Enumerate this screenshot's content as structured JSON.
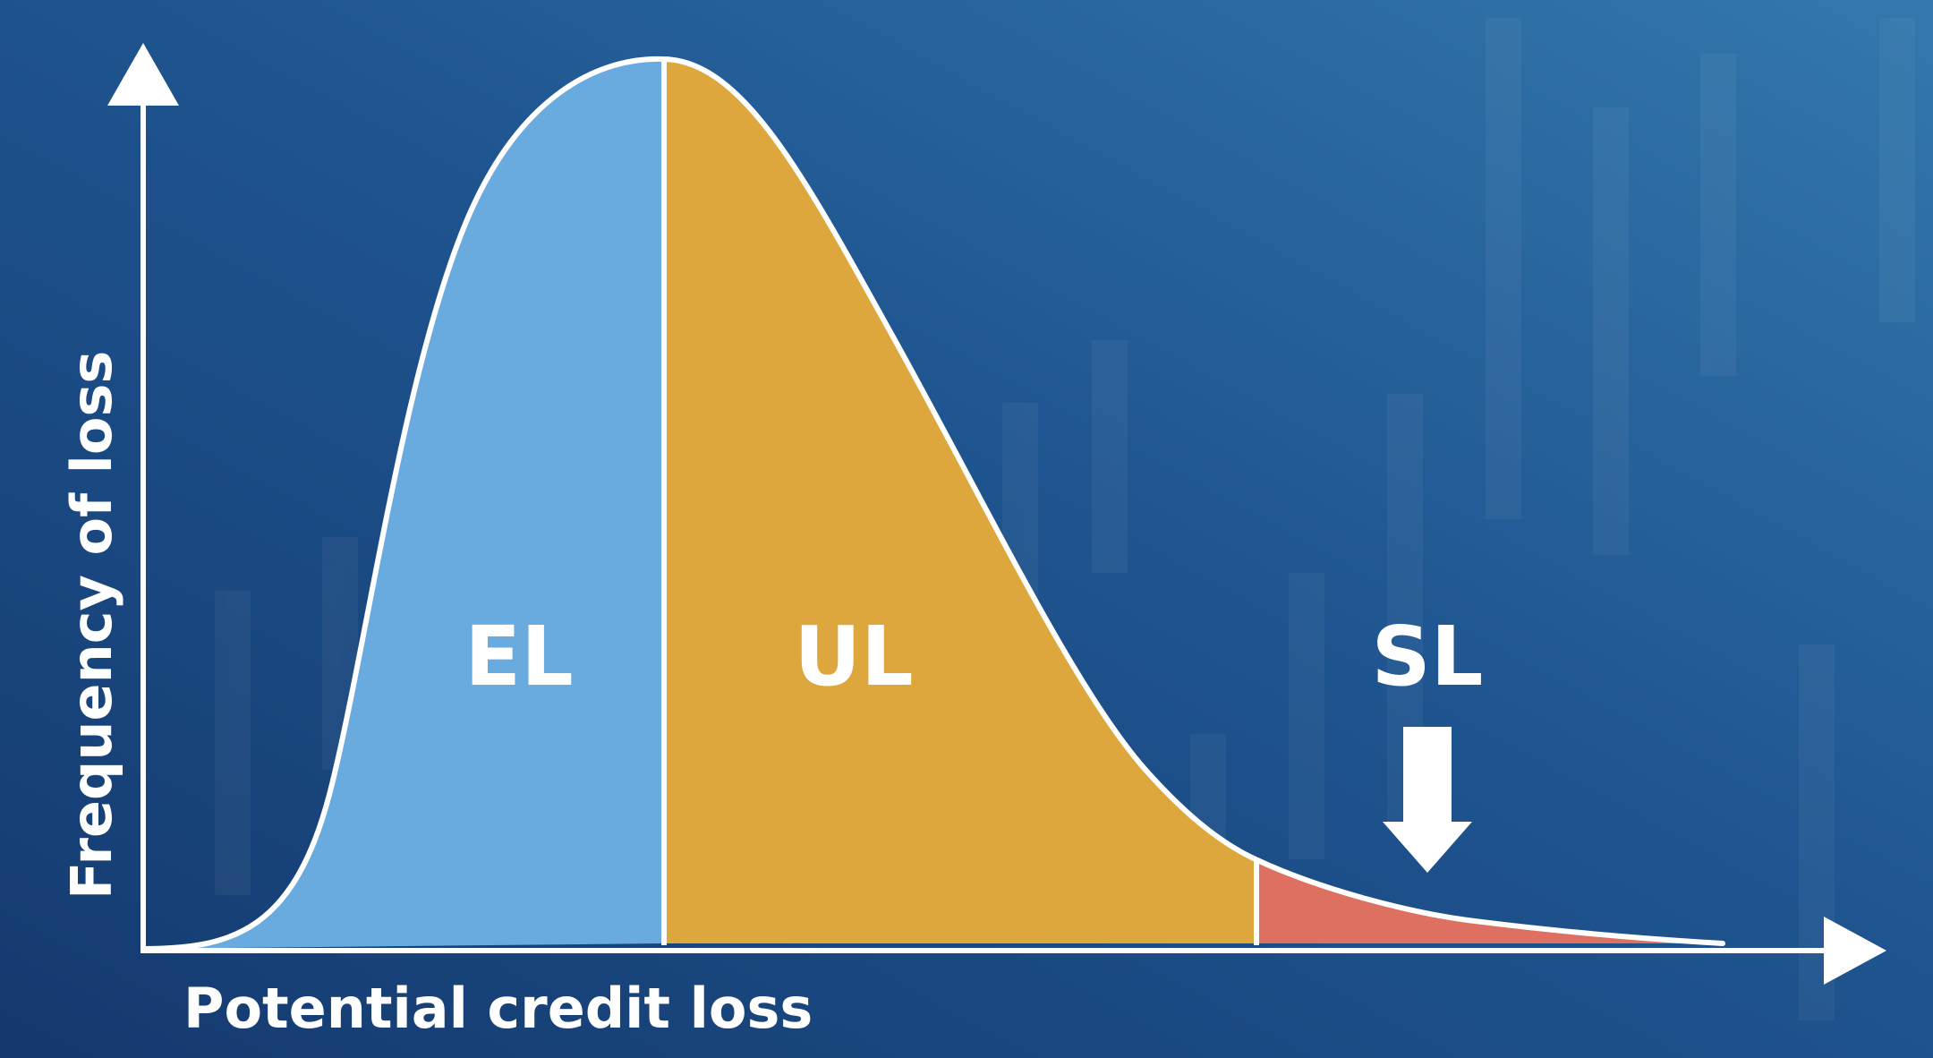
{
  "colors": {
    "background_dark": "#17427a",
    "background_light": "#2f72a8",
    "curve_stroke": "#ffffff",
    "axes": "#ffffff",
    "el_fill": "#6aabdf",
    "ul_fill": "#dda73e",
    "sl_fill": "#de7061",
    "text": "#ffffff"
  },
  "diagram": {
    "x_axis_label": "Potential credit loss",
    "y_axis_label": "Frequency of loss",
    "regions": [
      {
        "key": "el",
        "label": "EL"
      },
      {
        "key": "ul",
        "label": "UL"
      },
      {
        "key": "sl",
        "label": "SL"
      }
    ],
    "pointer": "down-arrow-icon"
  }
}
